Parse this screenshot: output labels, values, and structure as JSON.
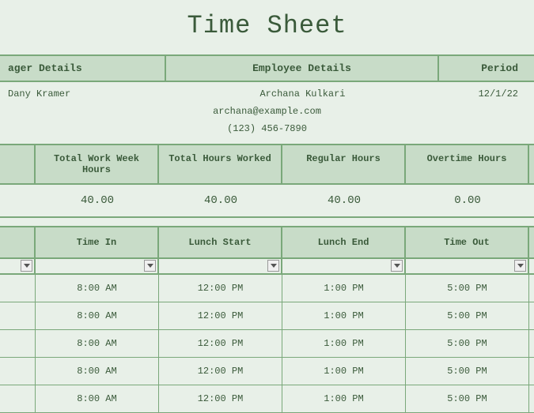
{
  "title": "Time Sheet",
  "headers": {
    "manager": "ager Details",
    "employee": "Employee Details",
    "period": "Period"
  },
  "manager": {
    "name": "Dany Kramer"
  },
  "employee": {
    "name": "Archana Kulkari",
    "email": "archana@example.com",
    "phone": "(123) 456-7890"
  },
  "period": {
    "start": "12/1/22"
  },
  "summary": {
    "labels": {
      "total_week": "Total Work Week Hours",
      "total_worked": "Total Hours Worked",
      "regular": "Regular Hours",
      "overtime": "Overtime Hours"
    },
    "values": {
      "total_week": "40.00",
      "total_worked": "40.00",
      "regular": "40.00",
      "overtime": "0.00"
    }
  },
  "time_table": {
    "columns": {
      "time_in": "Time In",
      "lunch_start": "Lunch Start",
      "lunch_end": "Lunch End",
      "time_out": "Time Out"
    },
    "rows": [
      {
        "time_in": "8:00 AM",
        "lunch_start": "12:00 PM",
        "lunch_end": "1:00 PM",
        "time_out": "5:00 PM"
      },
      {
        "time_in": "8:00 AM",
        "lunch_start": "12:00 PM",
        "lunch_end": "1:00 PM",
        "time_out": "5:00 PM"
      },
      {
        "time_in": "8:00 AM",
        "lunch_start": "12:00 PM",
        "lunch_end": "1:00 PM",
        "time_out": "5:00 PM"
      },
      {
        "time_in": "8:00 AM",
        "lunch_start": "12:00 PM",
        "lunch_end": "1:00 PM",
        "time_out": "5:00 PM"
      },
      {
        "time_in": "8:00 AM",
        "lunch_start": "12:00 PM",
        "lunch_end": "1:00 PM",
        "time_out": "5:00 PM"
      }
    ]
  },
  "colors": {
    "background": "#e8f0e8",
    "header_bg": "#c8dcc8",
    "border": "#7aa87a",
    "text": "#3a5a3a"
  }
}
